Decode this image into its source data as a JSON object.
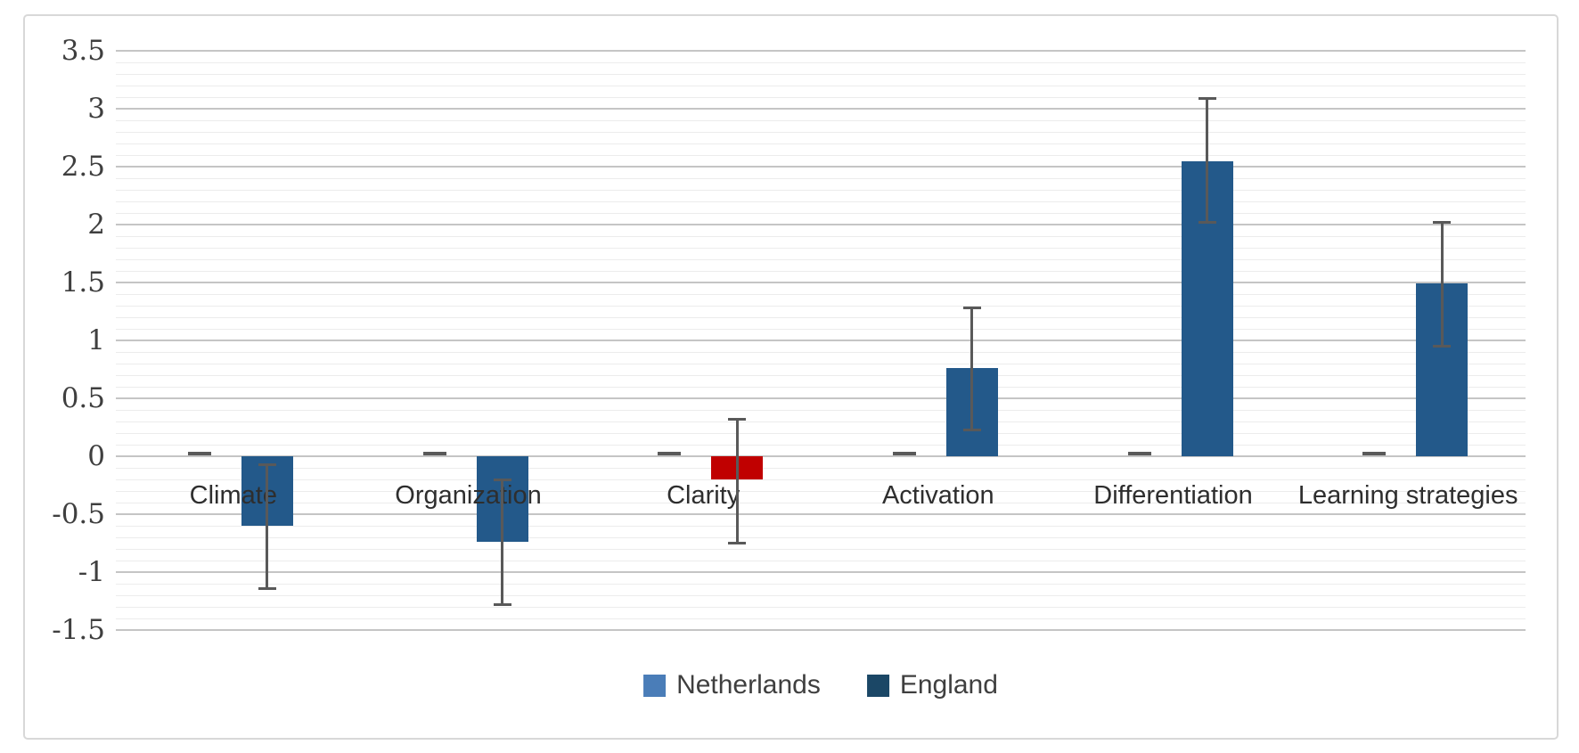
{
  "chart_data": {
    "type": "bar",
    "title": "",
    "categories": [
      "Climate",
      "Organization",
      "Clarity",
      "Activation",
      "Differentiation",
      "Learning strategies"
    ],
    "series": [
      {
        "name": "Netherlands",
        "color": "#4a7db8",
        "values": [
          0.02,
          0.02,
          0.02,
          0.02,
          0.02,
          0.02
        ]
      },
      {
        "name": "England",
        "color": "#23598a",
        "values": [
          -0.6,
          -0.74,
          -0.2,
          0.76,
          2.55,
          1.49
        ],
        "bar_colors": [
          "#23598a",
          "#23598a",
          "#c00000",
          "#23598a",
          "#23598a",
          "#23598a"
        ],
        "error_bars": {
          "low": [
            -1.14,
            -1.28,
            -0.75,
            0.23,
            2.02,
            0.95
          ],
          "high": [
            -0.07,
            -0.2,
            0.32,
            1.28,
            3.09,
            2.02
          ]
        }
      }
    ],
    "y_axis": {
      "min": -1.5,
      "max": 3.5,
      "major_step": 0.5,
      "minor_step": 0.1,
      "tick_labels": [
        "3.5",
        "3",
        "2.5",
        "2",
        "1.5",
        "1",
        "0.5",
        "0",
        "-0.5",
        "-1",
        "-1.5"
      ]
    },
    "x_axis": {
      "label": ""
    },
    "grid": {
      "major_color": "#c5c5c5",
      "minor_color": "#ececec",
      "show_minor": true
    },
    "error_bar_color": "#595959",
    "netherlands_dash_color": "#595959",
    "legend": {
      "position": "bottom",
      "entries": [
        {
          "label": "Netherlands",
          "color": "#4a7db8"
        },
        {
          "label": "England",
          "color": "#1b4766"
        }
      ]
    }
  }
}
